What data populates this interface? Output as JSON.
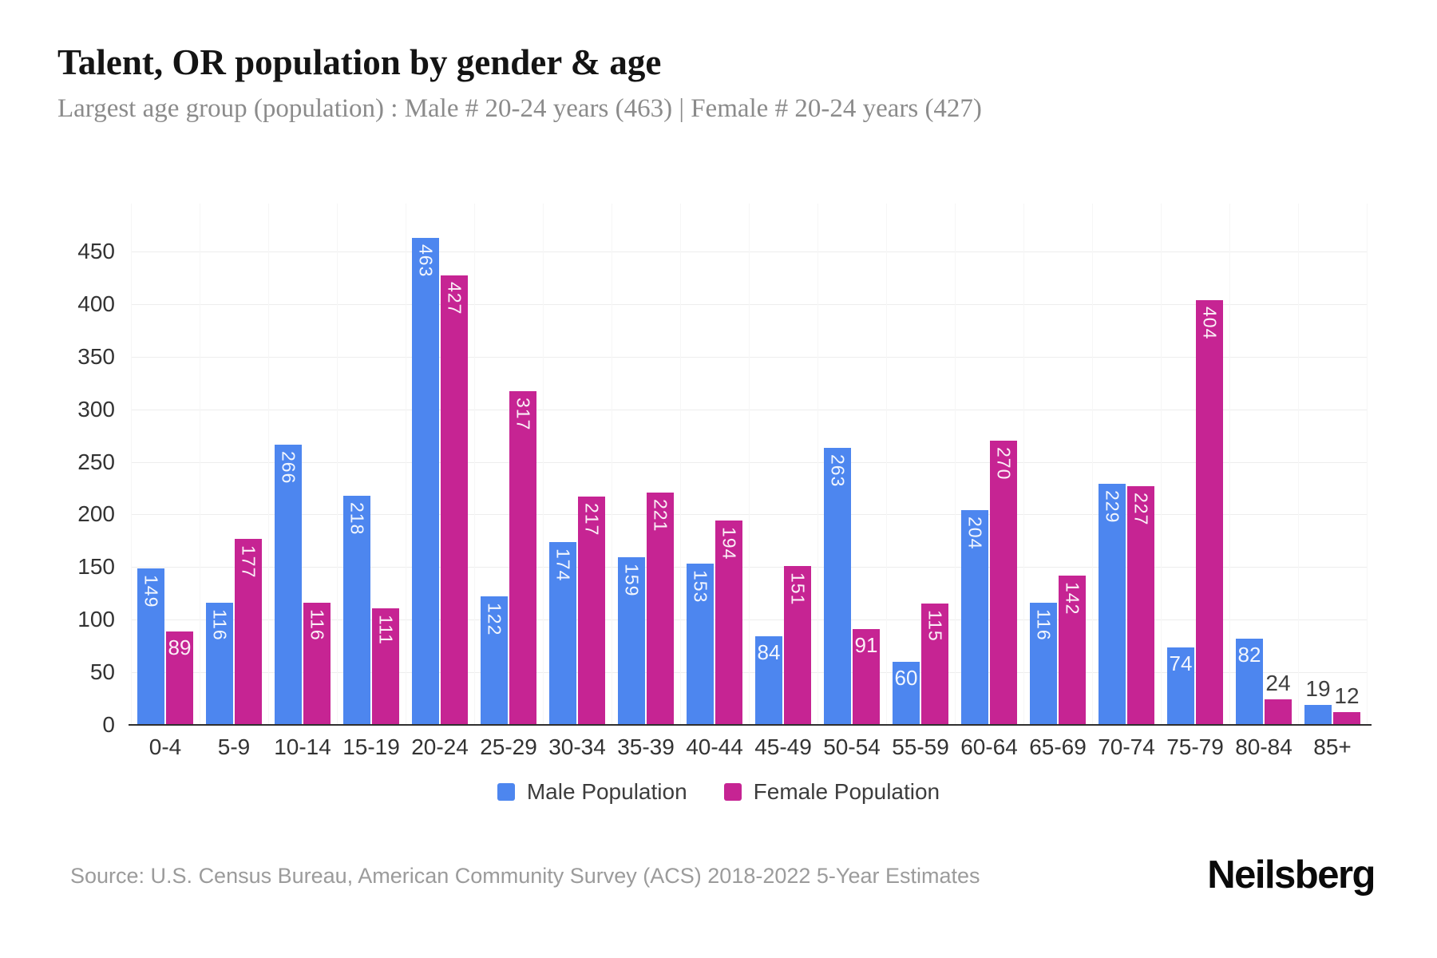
{
  "header": {
    "title": "Talent, OR population by gender & age",
    "subtitle": "Largest age group (population) : Male # 20-24 years (463) | Female # 20-24 years (427)"
  },
  "chart_data": {
    "type": "bar",
    "title": "Talent, OR population by gender & age",
    "categories": [
      "0-4",
      "5-9",
      "10-14",
      "15-19",
      "20-24",
      "25-29",
      "30-34",
      "35-39",
      "40-44",
      "45-49",
      "50-54",
      "55-59",
      "60-64",
      "65-69",
      "70-74",
      "75-79",
      "80-84",
      "85+"
    ],
    "series": [
      {
        "name": "Male Population",
        "color": "#4d86ef",
        "values": [
          149,
          116,
          266,
          218,
          463,
          122,
          174,
          159,
          153,
          84,
          263,
          60,
          204,
          116,
          229,
          74,
          82,
          19
        ]
      },
      {
        "name": "Female Population",
        "color": "#c62493",
        "values": [
          89,
          177,
          116,
          111,
          427,
          317,
          217,
          221,
          194,
          151,
          91,
          115,
          270,
          142,
          227,
          404,
          24,
          12
        ]
      }
    ],
    "xlabel": "",
    "ylabel": "",
    "yticks": [
      0,
      50,
      100,
      150,
      200,
      250,
      300,
      350,
      400,
      450
    ],
    "ylim": [
      0,
      495
    ],
    "grid": true,
    "legend_position": "bottom"
  },
  "footer": {
    "source": "Source: U.S. Census Bureau, American Community Survey (ACS) 2018-2022 5-Year Estimates",
    "brand": "Neilsberg"
  }
}
